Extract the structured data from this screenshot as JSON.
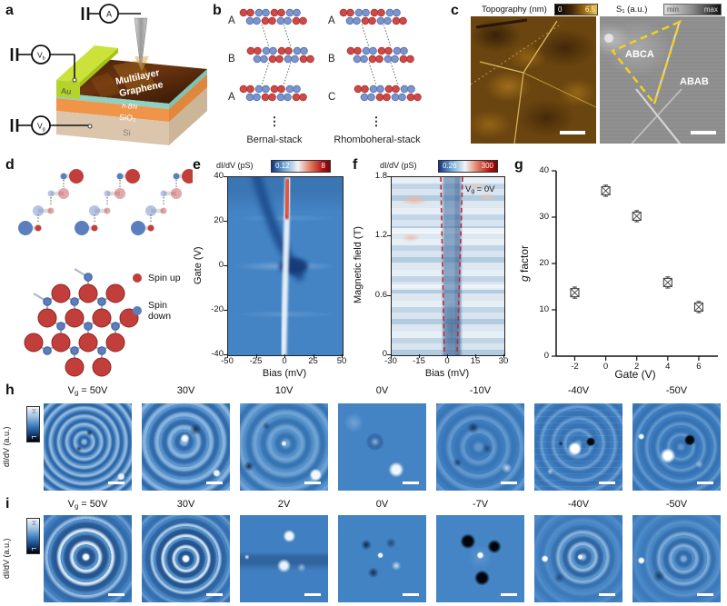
{
  "figure_title": "Multilayer graphene spin-polarized states figure",
  "panel_labels": {
    "a": "a",
    "b": "b",
    "c": "c",
    "d": "d",
    "e": "e",
    "f": "f",
    "g": "g",
    "h": "h",
    "i": "i"
  },
  "panel_a": {
    "meter_a": "A",
    "meter_vb_main": "V",
    "meter_vb_sub": "b",
    "meter_vg_main": "V",
    "meter_vg_sub": "g",
    "label_multilayer": "Multilayer",
    "label_graphene": "Graphene",
    "label_au": "Au",
    "label_hbn": "h-BN",
    "label_sio2": "SiO₂",
    "label_si": "Si"
  },
  "panel_b": {
    "left_layers": [
      "A",
      "B",
      "A"
    ],
    "right_layers": [
      "A",
      "B",
      "C"
    ],
    "left_caption": "Bernal-stack",
    "right_caption": "Rhomboheral-stack",
    "ellipsis": "⋮",
    "atom_red": "#cd4a47",
    "atom_blue": "#7b95cc"
  },
  "panel_c": {
    "topo_title": "Topography (nm)",
    "topo_cbar_min": "0",
    "topo_cbar_max": "6.5",
    "s1_title": "S₁ (a.u.)",
    "s1_cbar_min": "min",
    "s1_cbar_max": "max",
    "region_abca": "ABCA",
    "region_abab": "ABAB"
  },
  "panel_d": {
    "legend": [
      {
        "label": "Spin up",
        "color": "#c23e3b"
      },
      {
        "label": "Spin down",
        "color": "#5b7fbe"
      }
    ]
  },
  "panel_e": {
    "cbar_label": "dI/dV (pS)",
    "cbar_min": "0.12",
    "cbar_max": "8",
    "ylabel": "Gate (V)",
    "xlabel": "Bias (mV)",
    "yticks": [
      "40",
      "20",
      "0",
      "-20",
      "-40"
    ],
    "xticks": [
      "-50",
      "-25",
      "0",
      "25",
      "50"
    ]
  },
  "panel_f": {
    "cbar_label": "dI/dV (pS)",
    "cbar_min": "0.26",
    "cbar_max": "300",
    "ylabel": "Magnetic field (T)",
    "xlabel": "Bias (mV)",
    "yticks": [
      "1.8",
      "1.2",
      "0.6",
      "0"
    ],
    "xticks": [
      "-30",
      "-15",
      "0",
      "15",
      "30"
    ],
    "annot_main": "V",
    "annot_sub": "g",
    "annot_post": " = 0V"
  },
  "panel_g": {
    "ylabel_italic": "g",
    "ylabel_rest": " factor",
    "xlabel": "Gate (V)",
    "yticks": [
      "40",
      "30",
      "20",
      "10",
      "0"
    ],
    "xticks": [
      "-2",
      "0",
      "2",
      "4",
      "6"
    ]
  },
  "panel_h": {
    "cbar_high": "H",
    "cbar_low": "L",
    "axis_label": "dI/dV (a.u.)",
    "first_pre": "V",
    "first_sub": "g",
    "first_post": " = 50V",
    "gates": [
      "30V",
      "10V",
      "0V",
      "-10V",
      "-40V",
      "-50V"
    ]
  },
  "panel_i": {
    "cbar_high": "H",
    "cbar_low": "L",
    "axis_label": "dI/dV (a.u.)",
    "first_pre": "V",
    "first_sub": "g",
    "first_post": " = 50V",
    "gates": [
      "30V",
      "2V",
      "0V",
      "-7V",
      "-40V",
      "-50V"
    ]
  },
  "chart_data": [
    {
      "id": "e",
      "type": "heatmap",
      "xlabel": "Bias (mV)",
      "ylabel": "Gate (V)",
      "xlim": [
        -50,
        50
      ],
      "ylim": [
        -40,
        40
      ],
      "xticks": [
        -50,
        -25,
        0,
        25,
        50
      ],
      "yticks": [
        -40,
        -20,
        0,
        20,
        40
      ],
      "colorbar_label": "dI/dV (pS)",
      "colorbar_range": [
        0.12,
        8
      ],
      "features": [
        "high-conductance (white/red) vertical ridge near zero bias across all gate voltages",
        "ridge is intense red between gate +23 V and +40 V and pink below gate -22 V",
        "dark-blue suppressed band running diagonally from (bias -30 mV, gate +40 V) to near zero bias at gate ~0 V",
        "dark-blue gap-like pocket centered near bias +5 mV, gate 0 V"
      ]
    },
    {
      "id": "f",
      "type": "heatmap",
      "xlabel": "Bias (mV)",
      "ylabel": "Magnetic field (T)",
      "xlim": [
        -30,
        30
      ],
      "ylim": [
        0,
        1.8
      ],
      "xticks": [
        -30,
        -15,
        0,
        15,
        30
      ],
      "yticks": [
        0,
        0.6,
        1.2,
        1.8
      ],
      "colorbar_label": "dI/dV (pS)",
      "colorbar_range": [
        0.26,
        300
      ],
      "annotation": "Vg = 0V",
      "features": [
        "dark-blue vertical band around zero bias bounded by two red dashed guide lines that diverge slightly with field",
        "horizontal light/dark striping versus magnetic field",
        "salmon high-conductance patches near bias -18 mV at fields ~1.2 T and ~1.55 T and near +20 mV at ~1.6 T"
      ]
    },
    {
      "id": "g",
      "type": "scatter",
      "xlabel": "Gate (V)",
      "ylabel": "g factor",
      "xlim": [
        -3.2,
        7.0
      ],
      "ylim": [
        0,
        40
      ],
      "xticks": [
        -2,
        0,
        2,
        4,
        6
      ],
      "yticks": [
        0,
        10,
        20,
        30,
        40
      ],
      "x": [
        -2,
        0,
        2,
        4,
        6
      ],
      "y": [
        13.7,
        35.7,
        30.2,
        15.9,
        10.6
      ],
      "yerr": [
        1.2,
        1.2,
        1.2,
        1.2,
        1.2
      ],
      "marker": "crossed-square",
      "legend_position": "none",
      "grid": false
    }
  ]
}
